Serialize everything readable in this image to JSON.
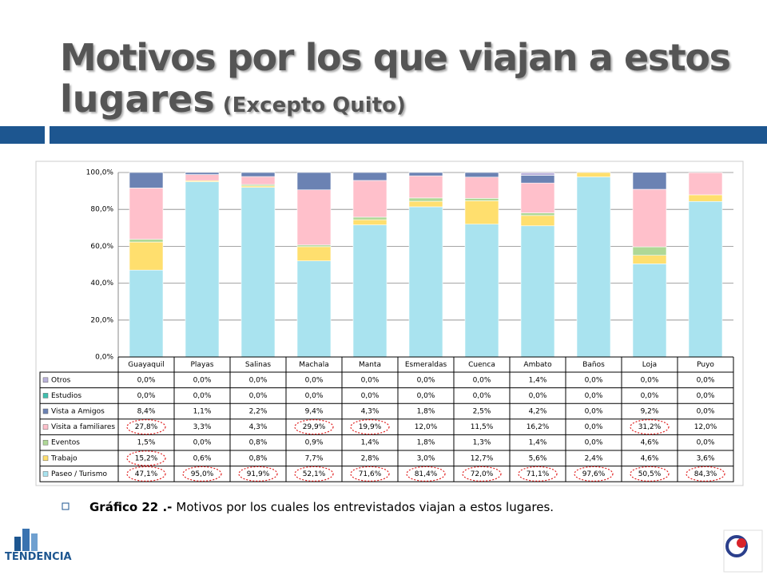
{
  "title": "Motivos por los que viajan a estos",
  "title_line2": "lugares",
  "title_note": "(Excepto Quito)",
  "chart_data": {
    "type": "stacked_bar",
    "categories": [
      "Guayaquil",
      "Playas",
      "Salinas",
      "Machala",
      "Manta",
      "Esmeraldas",
      "Cuenca",
      "Ambato",
      "Baños",
      "Loja",
      "Puyo"
    ],
    "ylim": [
      0,
      100
    ],
    "yticks": [
      {
        "value": 0,
        "label": "0,0%"
      },
      {
        "value": 20,
        "label": "20,0%"
      },
      {
        "value": 40,
        "label": "40,0%"
      },
      {
        "value": 60,
        "label": "60,0%"
      },
      {
        "value": 80,
        "label": "80,0%"
      },
      {
        "value": 100,
        "label": "100,0%"
      }
    ],
    "grid": true,
    "series": [
      {
        "name": "Paseo / Turismo",
        "color": "#a9e3ef",
        "values": [
          47.1,
          95.0,
          91.9,
          52.1,
          71.6,
          81.4,
          72.0,
          71.1,
          97.6,
          50.5,
          84.3
        ],
        "value_labels": [
          "47,1%",
          "95,0%",
          "91,9%",
          "52,1%",
          "71,6%",
          "81,4%",
          "72,0%",
          "71,1%",
          "97,6%",
          "50,5%",
          "84,3%"
        ],
        "circled": [
          true,
          true,
          true,
          true,
          true,
          true,
          true,
          true,
          true,
          true,
          true
        ]
      },
      {
        "name": "Trabajo",
        "color": "#ffdf6e",
        "values": [
          15.2,
          0.6,
          0.8,
          7.7,
          2.8,
          3.0,
          12.7,
          5.6,
          2.4,
          4.6,
          3.6
        ],
        "value_labels": [
          "15,2%",
          "0,6%",
          "0,8%",
          "7,7%",
          "2,8%",
          "3,0%",
          "12,7%",
          "5,6%",
          "2,4%",
          "4,6%",
          "3,6%"
        ],
        "circled": [
          true,
          false,
          false,
          false,
          false,
          false,
          false,
          false,
          false,
          false,
          false
        ]
      },
      {
        "name": "Eventos",
        "color": "#afd896",
        "values": [
          1.5,
          0.0,
          0.8,
          0.9,
          1.4,
          1.8,
          1.3,
          1.4,
          0.0,
          4.6,
          0.0
        ],
        "value_labels": [
          "1,5%",
          "0,0%",
          "0,8%",
          "0,9%",
          "1,4%",
          "1,8%",
          "1,3%",
          "1,4%",
          "0,0%",
          "4,6%",
          "0,0%"
        ],
        "circled": [
          false,
          false,
          false,
          false,
          false,
          false,
          false,
          false,
          false,
          false,
          false
        ]
      },
      {
        "name": "Visita a familiares",
        "color": "#ffc0cb",
        "values": [
          27.8,
          3.3,
          4.3,
          29.9,
          19.9,
          12.0,
          11.5,
          16.2,
          0.0,
          31.2,
          12.0
        ],
        "value_labels": [
          "27,8%",
          "3,3%",
          "4,3%",
          "29,9%",
          "19,9%",
          "12,0%",
          "11,5%",
          "16,2%",
          "0,0%",
          "31,2%",
          "12,0%"
        ],
        "circled": [
          true,
          false,
          false,
          true,
          true,
          false,
          false,
          false,
          false,
          true,
          false
        ]
      },
      {
        "name": "Vista a Amigos",
        "color": "#6b82b3",
        "values": [
          8.4,
          1.1,
          2.2,
          9.4,
          4.3,
          1.8,
          2.5,
          4.2,
          0.0,
          9.2,
          0.0
        ],
        "value_labels": [
          "8,4%",
          "1,1%",
          "2,2%",
          "9,4%",
          "4,3%",
          "1,8%",
          "2,5%",
          "4,2%",
          "0,0%",
          "9,2%",
          "0,0%"
        ],
        "circled": [
          false,
          false,
          false,
          false,
          false,
          false,
          false,
          false,
          false,
          false,
          false
        ]
      },
      {
        "name": "Estudios",
        "color": "#3fbfae",
        "values": [
          0.0,
          0.0,
          0.0,
          0.0,
          0.0,
          0.0,
          0.0,
          0.0,
          0.0,
          0.0,
          0.0
        ],
        "value_labels": [
          "0,0%",
          "0,0%",
          "0,0%",
          "0,0%",
          "0,0%",
          "0,0%",
          "0,0%",
          "0,0%",
          "0,0%",
          "0,0%",
          "0,0%"
        ],
        "circled": [
          false,
          false,
          false,
          false,
          false,
          false,
          false,
          false,
          false,
          false,
          false
        ]
      },
      {
        "name": "Otros",
        "color": "#b9b1da",
        "values": [
          0.0,
          0.0,
          0.0,
          0.0,
          0.0,
          0.0,
          0.0,
          1.4,
          0.0,
          0.0,
          0.0
        ],
        "value_labels": [
          "0,0%",
          "0,0%",
          "0,0%",
          "0,0%",
          "0,0%",
          "0,0%",
          "0,0%",
          "1,4%",
          "0,0%",
          "0,0%",
          "0,0%"
        ],
        "circled": [
          false,
          false,
          false,
          false,
          false,
          false,
          false,
          false,
          false,
          false,
          false
        ]
      }
    ]
  },
  "caption": {
    "label": "Gráfico 22 .-",
    "text": "Motivos por los cuales los entrevistados viajan a estos lugares."
  },
  "logo": "TENDENCIA"
}
